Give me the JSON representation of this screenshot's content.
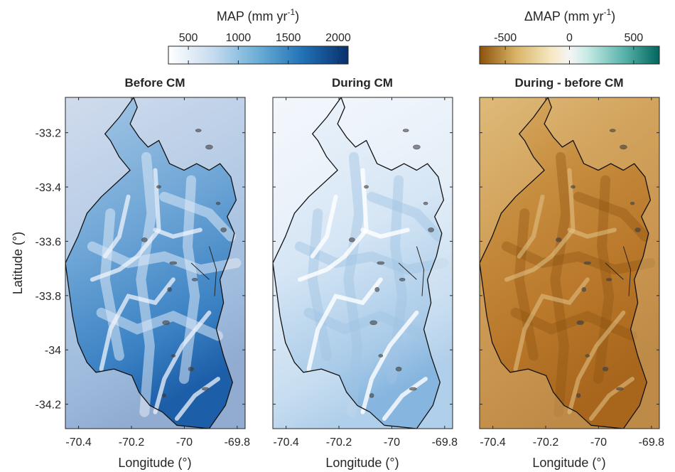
{
  "chart_data": {
    "type": "heatmap",
    "xlabel": "Longitude (°)",
    "ylabel": "Latitude (°)",
    "xlim": [
      -70.45,
      -69.77
    ],
    "ylim": [
      -34.29,
      -33.07
    ],
    "x_ticks": [
      -70.4,
      -70.2,
      -70,
      -69.8
    ],
    "x_tick_labels": [
      "-70.4",
      "-70.2",
      "-70",
      "-69.8"
    ],
    "y_ticks": [
      -33.2,
      -33.4,
      -33.6,
      -33.8,
      -34,
      -34.2
    ],
    "y_tick_labels": [
      "-33.2",
      "-33.4",
      "-33.6",
      "-33.8",
      "-34",
      "-34.2"
    ],
    "grid": false,
    "panels": [
      {
        "title": "Before CM",
        "variable": "MAP",
        "colormap": [
          "#ffffff",
          "#c6dbef",
          "#6baed6",
          "#2171b5",
          "#08306b"
        ],
        "approx_range_mm_yr": [
          500,
          2000
        ]
      },
      {
        "title": "During CM",
        "variable": "MAP",
        "colormap": [
          "#ffffff",
          "#c6dbef",
          "#6baed6",
          "#2171b5",
          "#08306b"
        ],
        "approx_range_mm_yr": [
          400,
          1400
        ]
      },
      {
        "title": "During - before CM",
        "variable": "ΔMAP",
        "colormap": [
          "#8c510a",
          "#d8b365",
          "#f6e8c3",
          "#c7eae5",
          "#5ab4ac",
          "#01665e"
        ],
        "approx_range_mm_yr": [
          -650,
          -200
        ]
      }
    ],
    "colorbars": [
      {
        "label_main": "MAP (mm yr",
        "label_exp": "-1",
        "label_end": ")",
        "min": 300,
        "max": 2100,
        "ticks": [
          500,
          1000,
          1500,
          2000
        ],
        "tick_labels": [
          "500",
          "1000",
          "1500",
          "2000"
        ],
        "colors": [
          "#ffffff",
          "#c6dbef",
          "#6baed6",
          "#2171b5",
          "#08306b"
        ]
      },
      {
        "label_main": "ΔMAP (mm yr",
        "label_exp": "-1",
        "label_end": ")",
        "min": -700,
        "max": 700,
        "ticks": [
          -500,
          0,
          500
        ],
        "tick_labels": [
          "-500",
          "0",
          "500"
        ],
        "colors": [
          "#8c510a",
          "#d8b365",
          "#f6e8c3",
          "#f5f5f5",
          "#c7eae5",
          "#5ab4ac",
          "#01665e"
        ]
      }
    ]
  }
}
